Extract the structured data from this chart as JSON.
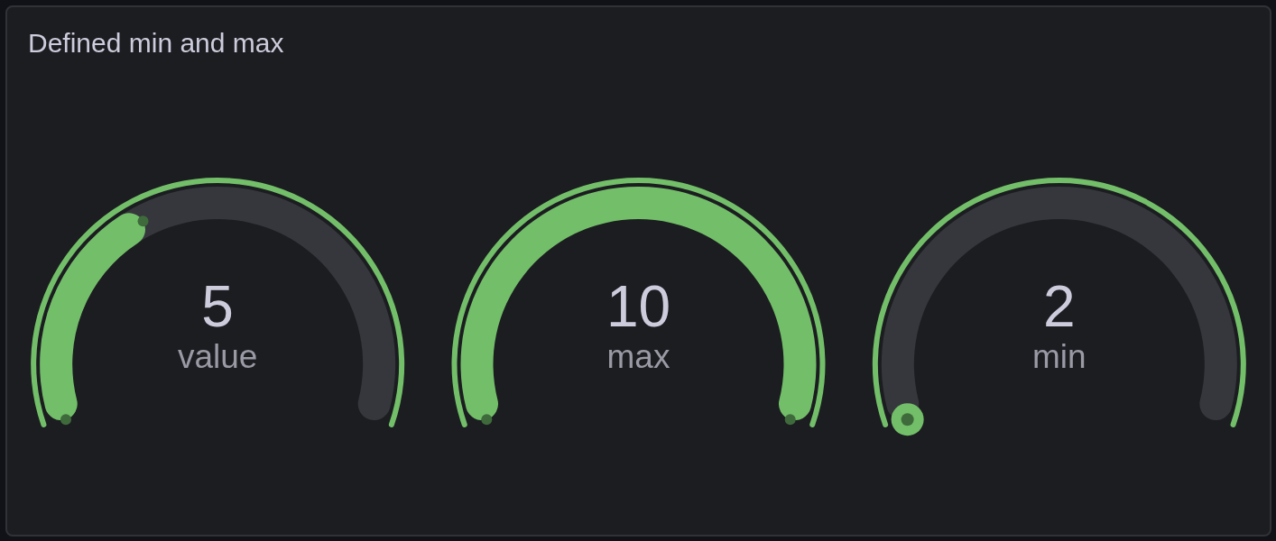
{
  "chart_data": {
    "type": "other",
    "title": "Defined min and max",
    "categories": [
      "value",
      "max",
      "min"
    ],
    "values": [
      5,
      10,
      2
    ],
    "color": "#73bf69",
    "data_labels": true
  }
}
